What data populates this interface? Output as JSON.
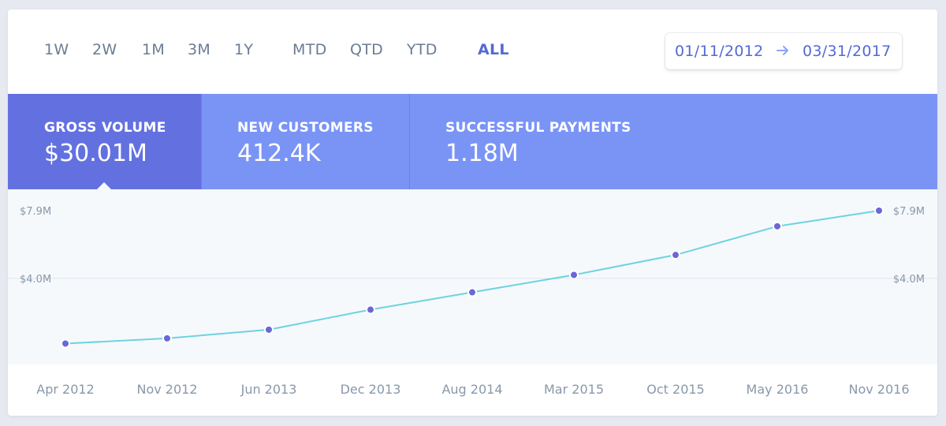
{
  "range_buttons": [
    "1W",
    "2W",
    "1M",
    "3M",
    "1Y",
    "MTD",
    "QTD",
    "YTD",
    "ALL"
  ],
  "active_range": "ALL",
  "date_range": {
    "start": "01/11/2012",
    "end": "03/31/2017"
  },
  "metrics": [
    {
      "label": "GROSS VOLUME",
      "value": "$30.01M",
      "selected": true
    },
    {
      "label": "NEW CUSTOMERS",
      "value": "412.4K",
      "selected": false
    },
    {
      "label": "SUCCESSFUL PAYMENTS",
      "value": "1.18M",
      "selected": false
    }
  ],
  "colors": {
    "accent": "#5469d4",
    "metrics_bg": "#7a94f6",
    "metric_selected_bg": "#6371e0",
    "line": "#6dd3e0",
    "point": "#6a67d8",
    "chart_bg": "#f6f9fc"
  },
  "chart_data": {
    "type": "line",
    "x": [
      "Apr 2012",
      "Nov 2012",
      "Jun 2013",
      "Dec 2013",
      "Aug 2014",
      "Mar 2015",
      "Oct 2015",
      "May 2016",
      "Nov 2016"
    ],
    "series": [
      {
        "values": [
          0.25,
          0.55,
          1.05,
          2.2,
          3.2,
          4.2,
          5.35,
          7.0,
          7.9
        ]
      }
    ],
    "y_ticks": [
      "$7.9M",
      "$4.0M"
    ],
    "y_tick_values": [
      7.9,
      4.0
    ],
    "ylim": [
      0,
      7.9
    ],
    "ylabel": "",
    "xlabel": "",
    "title": "",
    "grid": true,
    "y_axis_labels_both_sides": true
  }
}
